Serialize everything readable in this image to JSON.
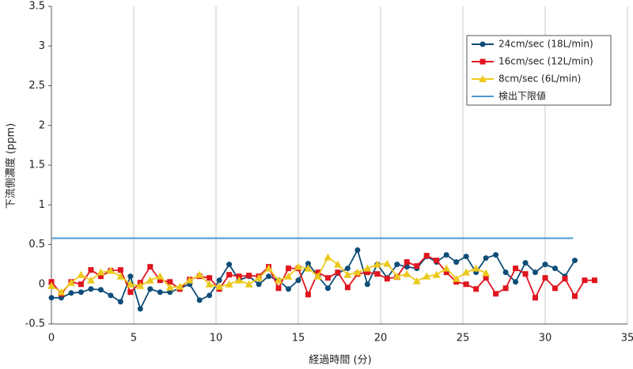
{
  "chart_data": {
    "type": "line",
    "x_label": "経過時間 (分)",
    "y_label": "下流側濃度 (ppm)",
    "xlim": [
      0,
      35
    ],
    "xticks": [
      0,
      5,
      10,
      15,
      20,
      25,
      30,
      35
    ],
    "ylim": [
      -0.5,
      3.5
    ],
    "yticks": [
      -0.5,
      0,
      0.5,
      1,
      1.5,
      2,
      2.5,
      3,
      3.5
    ],
    "grid": true,
    "legend": "upper right",
    "series": [
      {
        "name": "24cm/sec (18L/min)",
        "color": "#0e4d78",
        "marker": "circle",
        "x": [
          0,
          0.6,
          1.2,
          1.8,
          2.4,
          3,
          3.6,
          4.2,
          4.8,
          5.4,
          6,
          6.6,
          7.2,
          7.8,
          8.4,
          9,
          9.6,
          10.2,
          10.8,
          11.4,
          12,
          12.6,
          13.2,
          13.8,
          14.4,
          15,
          15.6,
          16.2,
          16.8,
          17.4,
          18,
          18.6,
          19.2,
          19.8,
          20.4,
          21,
          21.6,
          22.2,
          22.8,
          23.4,
          24,
          24.6,
          25.2,
          25.8,
          26.4,
          27,
          27.6,
          28.2,
          28.8,
          29.4,
          30,
          30.6,
          31.2,
          31.8
        ],
        "values": [
          -0.17,
          -0.17,
          -0.11,
          -0.1,
          -0.06,
          -0.07,
          -0.14,
          -0.22,
          0.1,
          -0.31,
          -0.06,
          -0.1,
          -0.1,
          -0.05,
          0.0,
          -0.2,
          -0.14,
          0.05,
          0.25,
          0.05,
          0.1,
          0.0,
          0.1,
          0.05,
          -0.06,
          0.05,
          0.26,
          0.1,
          -0.05,
          0.14,
          0.2,
          0.43,
          0.0,
          0.25,
          0.08,
          0.25,
          0.22,
          0.2,
          0.35,
          0.28,
          0.37,
          0.28,
          0.35,
          0.15,
          0.33,
          0.37,
          0.15,
          0.03,
          0.27,
          0.15,
          0.25,
          0.2,
          0.1,
          0.3
        ]
      },
      {
        "name": "16cm/sec (12L/min)",
        "color": "#e0151f",
        "marker": "square",
        "x": [
          0,
          0.6,
          1.2,
          1.8,
          2.4,
          3,
          3.6,
          4.2,
          4.8,
          5.4,
          6,
          6.6,
          7.2,
          7.8,
          8.4,
          9,
          9.6,
          10.2,
          10.8,
          11.4,
          12,
          12.6,
          13.2,
          13.8,
          14.4,
          15,
          15.6,
          16.2,
          16.8,
          17.4,
          18,
          18.6,
          19.2,
          19.8,
          20.4,
          21,
          21.6,
          22.2,
          22.8,
          23.4,
          24,
          24.6,
          25.2,
          25.8,
          26.4,
          27,
          27.6,
          28.2,
          28.8,
          29.4,
          30,
          30.6,
          31.2,
          31.8,
          32.4,
          33
        ],
        "values": [
          0.03,
          -0.12,
          0.03,
          0.0,
          0.18,
          0.1,
          0.17,
          0.18,
          -0.1,
          0.02,
          0.22,
          0.05,
          0.03,
          -0.06,
          0.06,
          0.1,
          0.08,
          -0.06,
          0.12,
          0.1,
          0.11,
          0.1,
          0.22,
          -0.05,
          0.2,
          0.2,
          -0.13,
          0.15,
          0.08,
          0.15,
          -0.04,
          0.13,
          0.15,
          0.13,
          0.07,
          0.09,
          0.28,
          0.23,
          0.36,
          0.3,
          0.15,
          0.03,
          0.0,
          -0.06,
          0.08,
          -0.12,
          -0.05,
          0.2,
          0.13,
          -0.17,
          0.08,
          -0.05,
          0.07,
          -0.15,
          0.05,
          0.05
        ]
      },
      {
        "name": "8cm/sec (6L/min)",
        "color": "#ecc91c",
        "marker": "triangle",
        "x": [
          0,
          0.6,
          1.2,
          1.8,
          2.4,
          3,
          3.6,
          4.2,
          4.8,
          5.4,
          6,
          6.6,
          7.2,
          7.8,
          8.4,
          9,
          9.6,
          10.2,
          10.8,
          11.4,
          12,
          12.6,
          13.2,
          13.8,
          14.4,
          15,
          15.6,
          16.2,
          16.8,
          17.4,
          18,
          18.6,
          19.2,
          19.8,
          20.4,
          21,
          21.6,
          22.2,
          22.8,
          23.4,
          24,
          24.6,
          25.2,
          25.8,
          26.4
        ],
        "values": [
          -0.02,
          -0.1,
          0.02,
          0.12,
          0.05,
          0.15,
          0.17,
          0.1,
          0.0,
          -0.02,
          0.05,
          0.1,
          -0.04,
          -0.03,
          0.05,
          0.12,
          0.0,
          -0.03,
          0.0,
          0.05,
          0.0,
          0.08,
          0.2,
          0.05,
          0.1,
          0.22,
          0.2,
          0.1,
          0.34,
          0.25,
          0.12,
          0.15,
          0.2,
          0.25,
          0.26,
          0.1,
          0.13,
          0.04,
          0.1,
          0.12,
          0.2,
          0.07,
          0.15,
          0.2,
          0.14
        ]
      },
      {
        "name": "検出下限値",
        "color": "#4a9ad4",
        "marker": "none",
        "x": [
          0,
          31.7
        ],
        "values": [
          0.58,
          0.58
        ]
      }
    ]
  }
}
